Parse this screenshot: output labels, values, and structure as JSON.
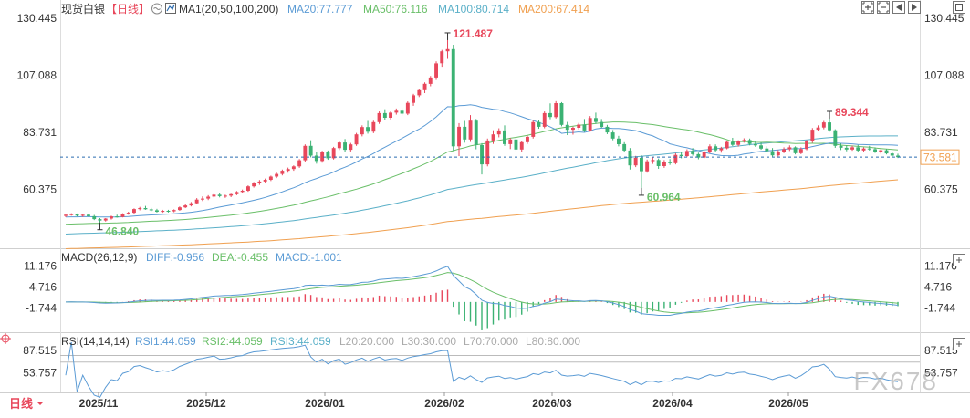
{
  "header": {
    "symbol": "现货白银",
    "period": "【日线】",
    "ma_indicator": "MA1(20,50,100,200)",
    "ma_values": [
      {
        "text": "MA20:77.777",
        "color": "#5b9bd5"
      },
      {
        "text": "MA50:76.116",
        "color": "#6abf69"
      },
      {
        "text": "MA100:80.714",
        "color": "#5bb0c8"
      },
      {
        "text": "MA200:67.414",
        "color": "#f0a050"
      }
    ]
  },
  "toolbar": {
    "icons": [
      "zoom-in-icon",
      "zoom-out-icon",
      "move-left-icon",
      "move-right-icon",
      "fullscreen-icon"
    ]
  },
  "macd": {
    "label": "MACD(26,12,9)",
    "diff": "DIFF:-0.956",
    "dea": "DEA:-0.455",
    "macd": "MACD:-1.001",
    "diff_color": "#5b9bd5",
    "dea_color": "#6abf69",
    "macd_color": "#5b9bd5"
  },
  "rsi": {
    "label": "RSI(14,14,14)",
    "rsi1": "RSI1:44.059",
    "rsi2": "RSI2:44.059",
    "rsi3": "RSI3:44.059",
    "l20": "L20:20.000",
    "l30": "L30:30.000",
    "l70": "L70:70.000",
    "l80": "L80:80.000"
  },
  "footer": {
    "period_button": "日线"
  },
  "watermark": "FX678",
  "colors": {
    "up": "#e8475b",
    "down": "#3bb273",
    "current_price_line": "#2b6cb0",
    "current_price_badge": "#f0a050"
  },
  "chart_data": {
    "type": "candlestick",
    "instrument": "现货白银",
    "x_labels": [
      "2025/11",
      "2025/12",
      "2026/01",
      "2026/02",
      "2026/03",
      "2026/04",
      "2026/05"
    ],
    "y_ticks_main": [
      130.445,
      107.088,
      83.731,
      60.375
    ],
    "y_ticks_macd": [
      11.176,
      4.716,
      -1.744
    ],
    "y_ticks_rsi": [
      87.515,
      53.757
    ],
    "annotations": [
      {
        "label": "121.487",
        "value": 121.487,
        "type": "high",
        "color": "#e8475b"
      },
      {
        "label": "89.344",
        "value": 89.344,
        "type": "high",
        "color": "#e8475b"
      },
      {
        "label": "46.840",
        "value": 46.84,
        "type": "low",
        "color": "#6abf69"
      },
      {
        "label": "60.964",
        "value": 60.964,
        "type": "low",
        "color": "#6abf69"
      }
    ],
    "current_price": 73.581,
    "ohlc": [
      [
        49.5,
        50.3,
        49.0,
        50.0
      ],
      [
        50.0,
        50.6,
        49.6,
        50.2
      ],
      [
        50.2,
        50.5,
        49.3,
        49.6
      ],
      [
        49.6,
        50.2,
        49.1,
        50.0
      ],
      [
        50.0,
        50.4,
        49.2,
        49.4
      ],
      [
        49.4,
        49.9,
        47.8,
        48.2
      ],
      [
        48.2,
        48.6,
        46.84,
        47.6
      ],
      [
        47.6,
        48.6,
        47.2,
        48.4
      ],
      [
        48.4,
        49.6,
        48.0,
        49.3
      ],
      [
        49.3,
        50.0,
        48.8,
        49.1
      ],
      [
        49.1,
        50.6,
        48.9,
        50.4
      ],
      [
        50.4,
        51.2,
        50.0,
        50.8
      ],
      [
        50.8,
        52.6,
        50.4,
        52.3
      ],
      [
        52.3,
        53.2,
        51.8,
        52.7
      ],
      [
        52.7,
        53.6,
        52.0,
        52.2
      ],
      [
        52.2,
        52.8,
        51.4,
        51.8
      ],
      [
        51.8,
        52.4,
        50.9,
        51.2
      ],
      [
        51.2,
        52.0,
        50.8,
        51.6
      ],
      [
        51.6,
        52.0,
        50.9,
        51.4
      ],
      [
        51.4,
        52.2,
        51.0,
        51.9
      ],
      [
        51.9,
        53.4,
        51.6,
        53.0
      ],
      [
        53.0,
        54.4,
        52.7,
        53.8
      ],
      [
        53.8,
        55.2,
        53.4,
        54.7
      ],
      [
        54.7,
        56.8,
        54.3,
        56.2
      ],
      [
        56.2,
        57.5,
        55.6,
        56.6
      ],
      [
        56.6,
        58.0,
        56.0,
        57.4
      ],
      [
        57.4,
        58.6,
        57.0,
        58.2
      ],
      [
        58.2,
        58.8,
        57.1,
        57.6
      ],
      [
        57.6,
        58.2,
        56.9,
        57.8
      ],
      [
        57.8,
        58.6,
        57.2,
        58.4
      ],
      [
        58.4,
        59.7,
        58.0,
        59.3
      ],
      [
        59.3,
        60.3,
        58.7,
        59.8
      ],
      [
        59.8,
        62.0,
        59.4,
        61.6
      ],
      [
        61.6,
        63.4,
        61.1,
        63.0
      ],
      [
        63.0,
        64.2,
        62.2,
        63.6
      ],
      [
        63.6,
        64.8,
        62.9,
        64.3
      ],
      [
        64.3,
        66.0,
        63.8,
        65.6
      ],
      [
        65.6,
        67.2,
        65.0,
        66.7
      ],
      [
        66.7,
        68.5,
        66.1,
        68.0
      ],
      [
        68.0,
        69.3,
        67.2,
        68.7
      ],
      [
        68.7,
        70.2,
        68.0,
        69.8
      ],
      [
        69.8,
        72.8,
        69.2,
        72.3
      ],
      [
        72.3,
        78.8,
        71.6,
        78.2
      ],
      [
        78.2,
        80.5,
        73.5,
        74.2
      ],
      [
        74.2,
        75.6,
        70.9,
        72.0
      ],
      [
        72.0,
        76.2,
        71.3,
        75.5
      ],
      [
        75.5,
        76.3,
        72.5,
        73.1
      ],
      [
        73.1,
        77.8,
        72.6,
        77.3
      ],
      [
        77.3,
        80.2,
        76.5,
        79.6
      ],
      [
        79.6,
        81.0,
        75.8,
        76.6
      ],
      [
        76.6,
        79.4,
        75.9,
        78.8
      ],
      [
        78.8,
        83.5,
        78.2,
        82.9
      ],
      [
        82.9,
        86.6,
        82.1,
        85.9
      ],
      [
        85.9,
        88.4,
        83.2,
        84.0
      ],
      [
        84.0,
        88.5,
        83.4,
        87.9
      ],
      [
        87.9,
        92.3,
        87.2,
        91.6
      ],
      [
        91.6,
        93.2,
        88.8,
        89.7
      ],
      [
        89.7,
        92.3,
        89.0,
        91.8
      ],
      [
        91.8,
        93.5,
        91.0,
        92.6
      ],
      [
        92.6,
        93.6,
        90.6,
        91.4
      ],
      [
        91.4,
        96.4,
        90.8,
        95.8
      ],
      [
        95.8,
        99.5,
        94.6,
        98.9
      ],
      [
        98.9,
        101.6,
        98.2,
        101.0
      ],
      [
        101.0,
        104.2,
        99.8,
        103.6
      ],
      [
        103.6,
        106.8,
        102.6,
        106.2
      ],
      [
        106.2,
        112.8,
        105.2,
        112.0
      ],
      [
        112.0,
        117.5,
        110.6,
        116.9
      ],
      [
        116.9,
        121.487,
        113.8,
        117.8
      ],
      [
        117.8,
        119.6,
        76.2,
        78.0
      ],
      [
        78.0,
        87.5,
        74.0,
        86.0
      ],
      [
        86.0,
        88.4,
        79.5,
        80.8
      ],
      [
        80.8,
        90.8,
        79.8,
        88.5
      ],
      [
        88.5,
        89.2,
        76.8,
        78.5
      ],
      [
        78.5,
        79.3,
        66.5,
        70.6
      ],
      [
        70.6,
        81.2,
        69.8,
        80.4
      ],
      [
        80.4,
        84.6,
        79.0,
        82.9
      ],
      [
        82.9,
        85.4,
        81.7,
        84.5
      ],
      [
        84.5,
        86.6,
        78.2,
        78.9
      ],
      [
        78.9,
        81.4,
        76.9,
        80.8
      ],
      [
        80.8,
        82.0,
        75.8,
        76.7
      ],
      [
        76.7,
        80.2,
        75.6,
        79.7
      ],
      [
        79.7,
        82.4,
        79.0,
        81.9
      ],
      [
        81.9,
        88.5,
        81.2,
        87.9
      ],
      [
        87.9,
        88.6,
        85.2,
        86.0
      ],
      [
        86.0,
        92.3,
        85.4,
        91.6
      ],
      [
        91.6,
        95.6,
        89.1,
        90.0
      ],
      [
        90.0,
        96.5,
        89.4,
        95.7
      ],
      [
        95.7,
        96.1,
        86.2,
        86.8
      ],
      [
        86.8,
        88.0,
        82.6,
        84.8
      ],
      [
        84.8,
        86.1,
        82.8,
        85.6
      ],
      [
        85.6,
        87.6,
        84.9,
        86.9
      ],
      [
        86.9,
        89.2,
        83.9,
        84.5
      ],
      [
        84.5,
        90.4,
        84.0,
        89.6
      ],
      [
        89.6,
        91.8,
        87.2,
        88.0
      ],
      [
        88.0,
        89.2,
        85.5,
        86.0
      ],
      [
        86.0,
        86.8,
        83.0,
        83.7
      ],
      [
        83.7,
        84.7,
        80.5,
        81.2
      ],
      [
        81.2,
        82.3,
        78.0,
        78.9
      ],
      [
        78.9,
        79.7,
        75.5,
        76.3
      ],
      [
        76.3,
        77.3,
        68.5,
        70.2
      ],
      [
        70.2,
        74.1,
        69.5,
        73.3
      ],
      [
        73.3,
        74.4,
        60.964,
        67.8
      ],
      [
        67.8,
        72.6,
        67.2,
        71.9
      ],
      [
        71.9,
        73.6,
        70.8,
        72.4
      ],
      [
        72.4,
        73.0,
        68.8,
        69.9
      ],
      [
        69.9,
        72.4,
        69.2,
        71.7
      ],
      [
        71.7,
        72.8,
        70.4,
        71.1
      ],
      [
        71.1,
        75.2,
        70.6,
        74.5
      ],
      [
        74.5,
        75.8,
        73.1,
        74.0
      ],
      [
        74.0,
        76.8,
        73.6,
        76.1
      ],
      [
        76.1,
        77.3,
        74.2,
        74.8
      ],
      [
        74.8,
        75.4,
        72.7,
        73.4
      ],
      [
        73.4,
        76.2,
        73.0,
        75.6
      ],
      [
        75.6,
        78.8,
        75.1,
        78.0
      ],
      [
        78.0,
        78.8,
        75.6,
        76.4
      ],
      [
        76.4,
        77.8,
        75.4,
        77.2
      ],
      [
        77.2,
        80.4,
        76.8,
        79.8
      ],
      [
        79.8,
        81.5,
        78.1,
        78.6
      ],
      [
        78.6,
        80.5,
        77.9,
        80.1
      ],
      [
        80.1,
        81.3,
        79.5,
        80.6
      ],
      [
        80.6,
        81.2,
        78.4,
        79.0
      ],
      [
        79.0,
        80.0,
        77.8,
        78.4
      ],
      [
        78.4,
        79.6,
        76.6,
        77.1
      ],
      [
        77.1,
        78.0,
        75.5,
        76.0
      ],
      [
        76.0,
        77.3,
        73.7,
        74.3
      ],
      [
        74.3,
        76.5,
        73.8,
        75.8
      ],
      [
        75.8,
        77.6,
        75.2,
        76.8
      ],
      [
        76.8,
        78.4,
        76.1,
        77.6
      ],
      [
        77.6,
        78.0,
        74.7,
        75.2
      ],
      [
        75.2,
        77.6,
        74.8,
        76.9
      ],
      [
        76.9,
        80.6,
        76.4,
        80.0
      ],
      [
        80.0,
        85.5,
        79.4,
        84.8
      ],
      [
        84.8,
        86.6,
        84.2,
        85.7
      ],
      [
        85.7,
        88.4,
        85.0,
        87.8
      ],
      [
        87.8,
        89.344,
        84.0,
        84.6
      ],
      [
        84.6,
        85.0,
        77.4,
        78.2
      ],
      [
        78.2,
        79.2,
        76.5,
        77.4
      ],
      [
        77.4,
        78.4,
        76.0,
        76.7
      ],
      [
        76.7,
        78.3,
        76.2,
        77.6
      ],
      [
        77.6,
        78.6,
        75.7,
        76.3
      ],
      [
        76.3,
        77.6,
        75.9,
        77.1
      ],
      [
        77.1,
        78.2,
        76.3,
        76.8
      ],
      [
        76.8,
        77.6,
        75.3,
        75.8
      ],
      [
        75.8,
        76.8,
        75.0,
        76.4
      ],
      [
        76.4,
        76.9,
        74.7,
        75.1
      ],
      [
        75.1,
        75.8,
        73.6,
        74.2
      ],
      [
        74.2,
        75.0,
        73.2,
        73.581
      ]
    ]
  }
}
